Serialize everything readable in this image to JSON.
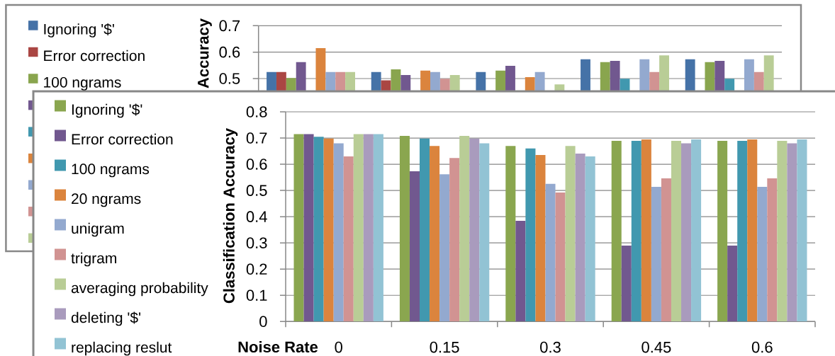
{
  "chart_data": [
    {
      "type": "bar",
      "ylabel": "Accuracy",
      "categories": [
        null,
        null,
        null,
        null,
        null
      ],
      "series": [
        {
          "name": "Ignoring '$'",
          "color": "#4572a7",
          "values": [
            0.525,
            0.525,
            0.525,
            0.573,
            0.573
          ]
        },
        {
          "name": "Error correction",
          "color": "#aa4643",
          "values": [
            0.525,
            0.493,
            null,
            null,
            null
          ]
        },
        {
          "name": "100 ngrams",
          "color": "#89a54e",
          "values": [
            0.502,
            0.535,
            0.53,
            0.562,
            0.562
          ]
        },
        {
          "color": "#71588f",
          "values": [
            0.562,
            0.513,
            0.548,
            0.567,
            0.567
          ]
        },
        {
          "color": "#4198af",
          "values": [
            null,
            null,
            null,
            0.499,
            0.499
          ]
        },
        {
          "color": "#db843d",
          "values": [
            0.615,
            0.53,
            0.505,
            null,
            null
          ]
        },
        {
          "color": "#93a9cf",
          "values": [
            0.525,
            0.525,
            0.525,
            0.573,
            0.573
          ]
        },
        {
          "color": "#d19392",
          "values": [
            0.525,
            0.499,
            null,
            0.525,
            0.525
          ]
        },
        {
          "color": "#b9cd96",
          "values": [
            0.525,
            0.513,
            0.478,
            0.588,
            0.588
          ]
        }
      ],
      "ylim": [
        0.45,
        0.7
      ],
      "yticks": [
        0.5,
        0.6,
        0.7
      ],
      "grid": "y",
      "legend": "left",
      "tick_labels": "y"
    },
    {
      "type": "bar",
      "xlabel": "Noise Rate",
      "ylabel": "Classification Accuracy",
      "categories": [
        "0",
        "0.15",
        "0.3",
        "0.45",
        "0.6"
      ],
      "series": [
        {
          "name": "Ignoring '$'",
          "color": "#8aa64f",
          "values": [
            0.715,
            0.708,
            0.67,
            0.689,
            0.689
          ]
        },
        {
          "name": "Error correction",
          "color": "#71588f",
          "values": [
            0.715,
            0.573,
            0.384,
            0.29,
            0.29
          ]
        },
        {
          "name": "100 ngrams",
          "color": "#4198af",
          "values": [
            0.705,
            0.698,
            0.66,
            0.689,
            0.689
          ]
        },
        {
          "name": "20 ngrams",
          "color": "#db843d",
          "values": [
            0.698,
            0.67,
            0.635,
            0.695,
            0.695
          ]
        },
        {
          "name": "unigram",
          "color": "#93a9cf",
          "values": [
            0.68,
            0.562,
            0.525,
            0.514,
            0.514
          ]
        },
        {
          "name": "trigram",
          "color": "#d19392",
          "values": [
            0.63,
            0.624,
            0.492,
            0.546,
            0.546
          ]
        },
        {
          "name": "averaging probability",
          "color": "#b9cd96",
          "values": [
            0.715,
            0.708,
            0.67,
            0.689,
            0.689
          ]
        },
        {
          "name": "deleting '$'",
          "color": "#a99bbd",
          "values": [
            0.715,
            0.698,
            0.641,
            0.68,
            0.68
          ]
        },
        {
          "name": "replacing reslut",
          "color": "#92c3d4",
          "values": [
            0.715,
            0.68,
            0.63,
            0.695,
            0.695
          ]
        }
      ],
      "ylim": [
        0,
        0.8
      ],
      "yticks": [
        0,
        0.1,
        0.2,
        0.3,
        0.4,
        0.5,
        0.6,
        0.7,
        0.8
      ],
      "grid": "y",
      "legend": "left"
    }
  ]
}
